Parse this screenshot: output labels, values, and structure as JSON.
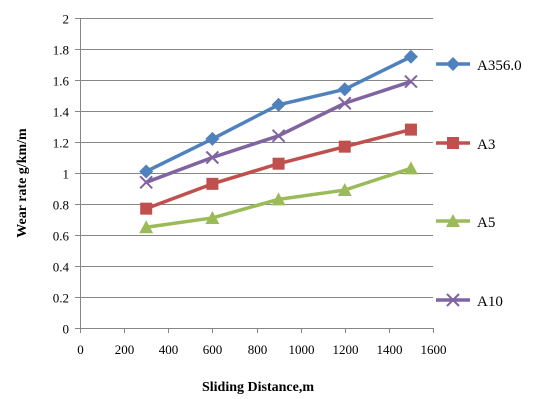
{
  "chart_data": {
    "type": "line",
    "title": "",
    "xlabel": "Sliding Distance,m",
    "ylabel": "Wear rate g/km/m",
    "x": [
      300,
      600,
      900,
      1200,
      1500
    ],
    "xlim": [
      0,
      1600
    ],
    "ylim": [
      0,
      2
    ],
    "x_ticks": [
      0,
      200,
      400,
      600,
      800,
      1000,
      1200,
      1400,
      1600
    ],
    "y_ticks": [
      0,
      0.2,
      0.4,
      0.6,
      0.8,
      1,
      1.2,
      1.4,
      1.6,
      1.8,
      2
    ],
    "grid": "horizontal",
    "legend_position": "right",
    "series": [
      {
        "name": "A356.0",
        "color": "#4F81BD",
        "marker": "diamond",
        "values": [
          1.01,
          1.22,
          1.44,
          1.54,
          1.75
        ]
      },
      {
        "name": "A3",
        "color": "#C0504D",
        "marker": "square",
        "values": [
          0.77,
          0.93,
          1.06,
          1.17,
          1.28
        ]
      },
      {
        "name": "A5",
        "color": "#9BBB59",
        "marker": "triangle",
        "values": [
          0.65,
          0.71,
          0.83,
          0.89,
          1.03
        ]
      },
      {
        "name": "A10",
        "color": "#8064A2",
        "marker": "x",
        "values": [
          0.94,
          1.1,
          1.24,
          1.45,
          1.59
        ]
      }
    ]
  }
}
